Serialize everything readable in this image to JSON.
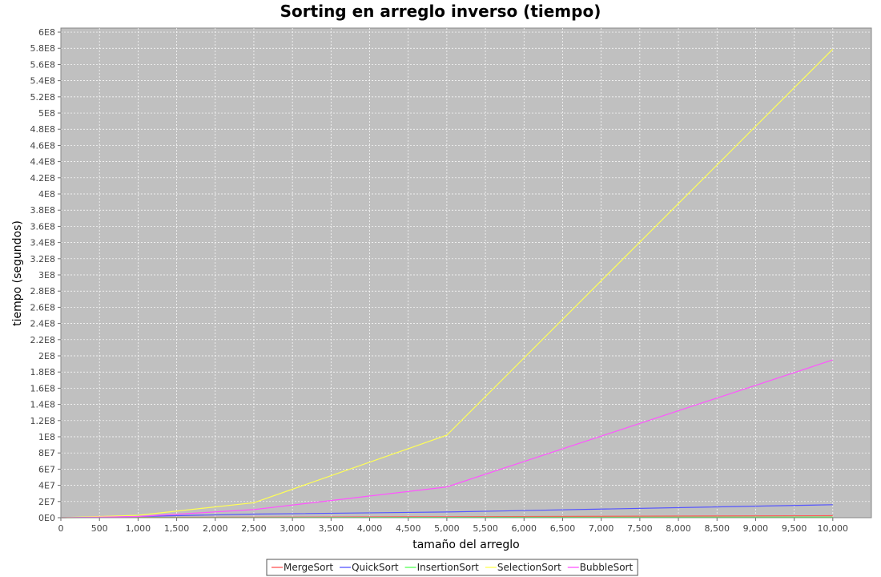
{
  "chart_data": {
    "type": "line",
    "title": "Sorting en arreglo inverso (tiempo)",
    "xlabel": "tamaño del arreglo",
    "ylabel": "tiempo (segundos)",
    "xlim": [
      0,
      10500
    ],
    "ylim": [
      0,
      605000000
    ],
    "x_ticks": [
      0,
      500,
      1000,
      1500,
      2000,
      2500,
      3000,
      3500,
      4000,
      4500,
      5000,
      5500,
      6000,
      6500,
      7000,
      7500,
      8000,
      8500,
      9000,
      9500,
      10000
    ],
    "x_tick_labels": [
      "0",
      "500",
      "1,000",
      "1,500",
      "2,000",
      "2,500",
      "3,000",
      "3,500",
      "4,000",
      "4,500",
      "5,000",
      "5,500",
      "6,000",
      "6,500",
      "7,000",
      "7,500",
      "8,000",
      "8,500",
      "9,000",
      "9,500",
      "10,000"
    ],
    "y_ticks": [
      0,
      20000000,
      40000000,
      60000000,
      80000000,
      100000000,
      120000000,
      140000000,
      160000000,
      180000000,
      200000000,
      220000000,
      240000000,
      260000000,
      280000000,
      300000000,
      320000000,
      340000000,
      360000000,
      380000000,
      400000000,
      420000000,
      440000000,
      460000000,
      480000000,
      500000000,
      520000000,
      540000000,
      560000000,
      580000000,
      600000000
    ],
    "y_tick_labels": [
      "0E0",
      "2E7",
      "4E7",
      "6E7",
      "8E7",
      "1E8",
      "1.2E8",
      "1.4E8",
      "1.6E8",
      "1.8E8",
      "2E8",
      "2.2E8",
      "2.4E8",
      "2.6E8",
      "2.8E8",
      "3E8",
      "3.2E8",
      "3.4E8",
      "3.6E8",
      "3.8E8",
      "4E8",
      "4.2E8",
      "4.4E8",
      "4.6E8",
      "4.8E8",
      "5E8",
      "5.2E8",
      "5.4E8",
      "5.6E8",
      "5.8E8",
      "6E8"
    ],
    "grid": true,
    "legend_position": "bottom",
    "background": "#c0c0c0",
    "x": [
      10,
      1000,
      2500,
      5000,
      10000
    ],
    "series": [
      {
        "name": "MergeSort",
        "color": "#ff5555",
        "values": [
          0,
          400000,
          700000,
          1200000,
          2500000
        ]
      },
      {
        "name": "QuickSort",
        "color": "#5555ff",
        "values": [
          0,
          1500000,
          4500000,
          7000000,
          16000000
        ]
      },
      {
        "name": "InsertionSort",
        "color": "#55ff55",
        "values": [
          0,
          100000,
          200000,
          400000,
          800000
        ]
      },
      {
        "name": "SelectionSort",
        "color": "#ffff55",
        "values": [
          0,
          3000000,
          18500000,
          102000000,
          579000000
        ]
      },
      {
        "name": "BubbleSort",
        "color": "#ff55ff",
        "values": [
          0,
          1500000,
          10000000,
          38000000,
          195000000
        ]
      }
    ]
  }
}
